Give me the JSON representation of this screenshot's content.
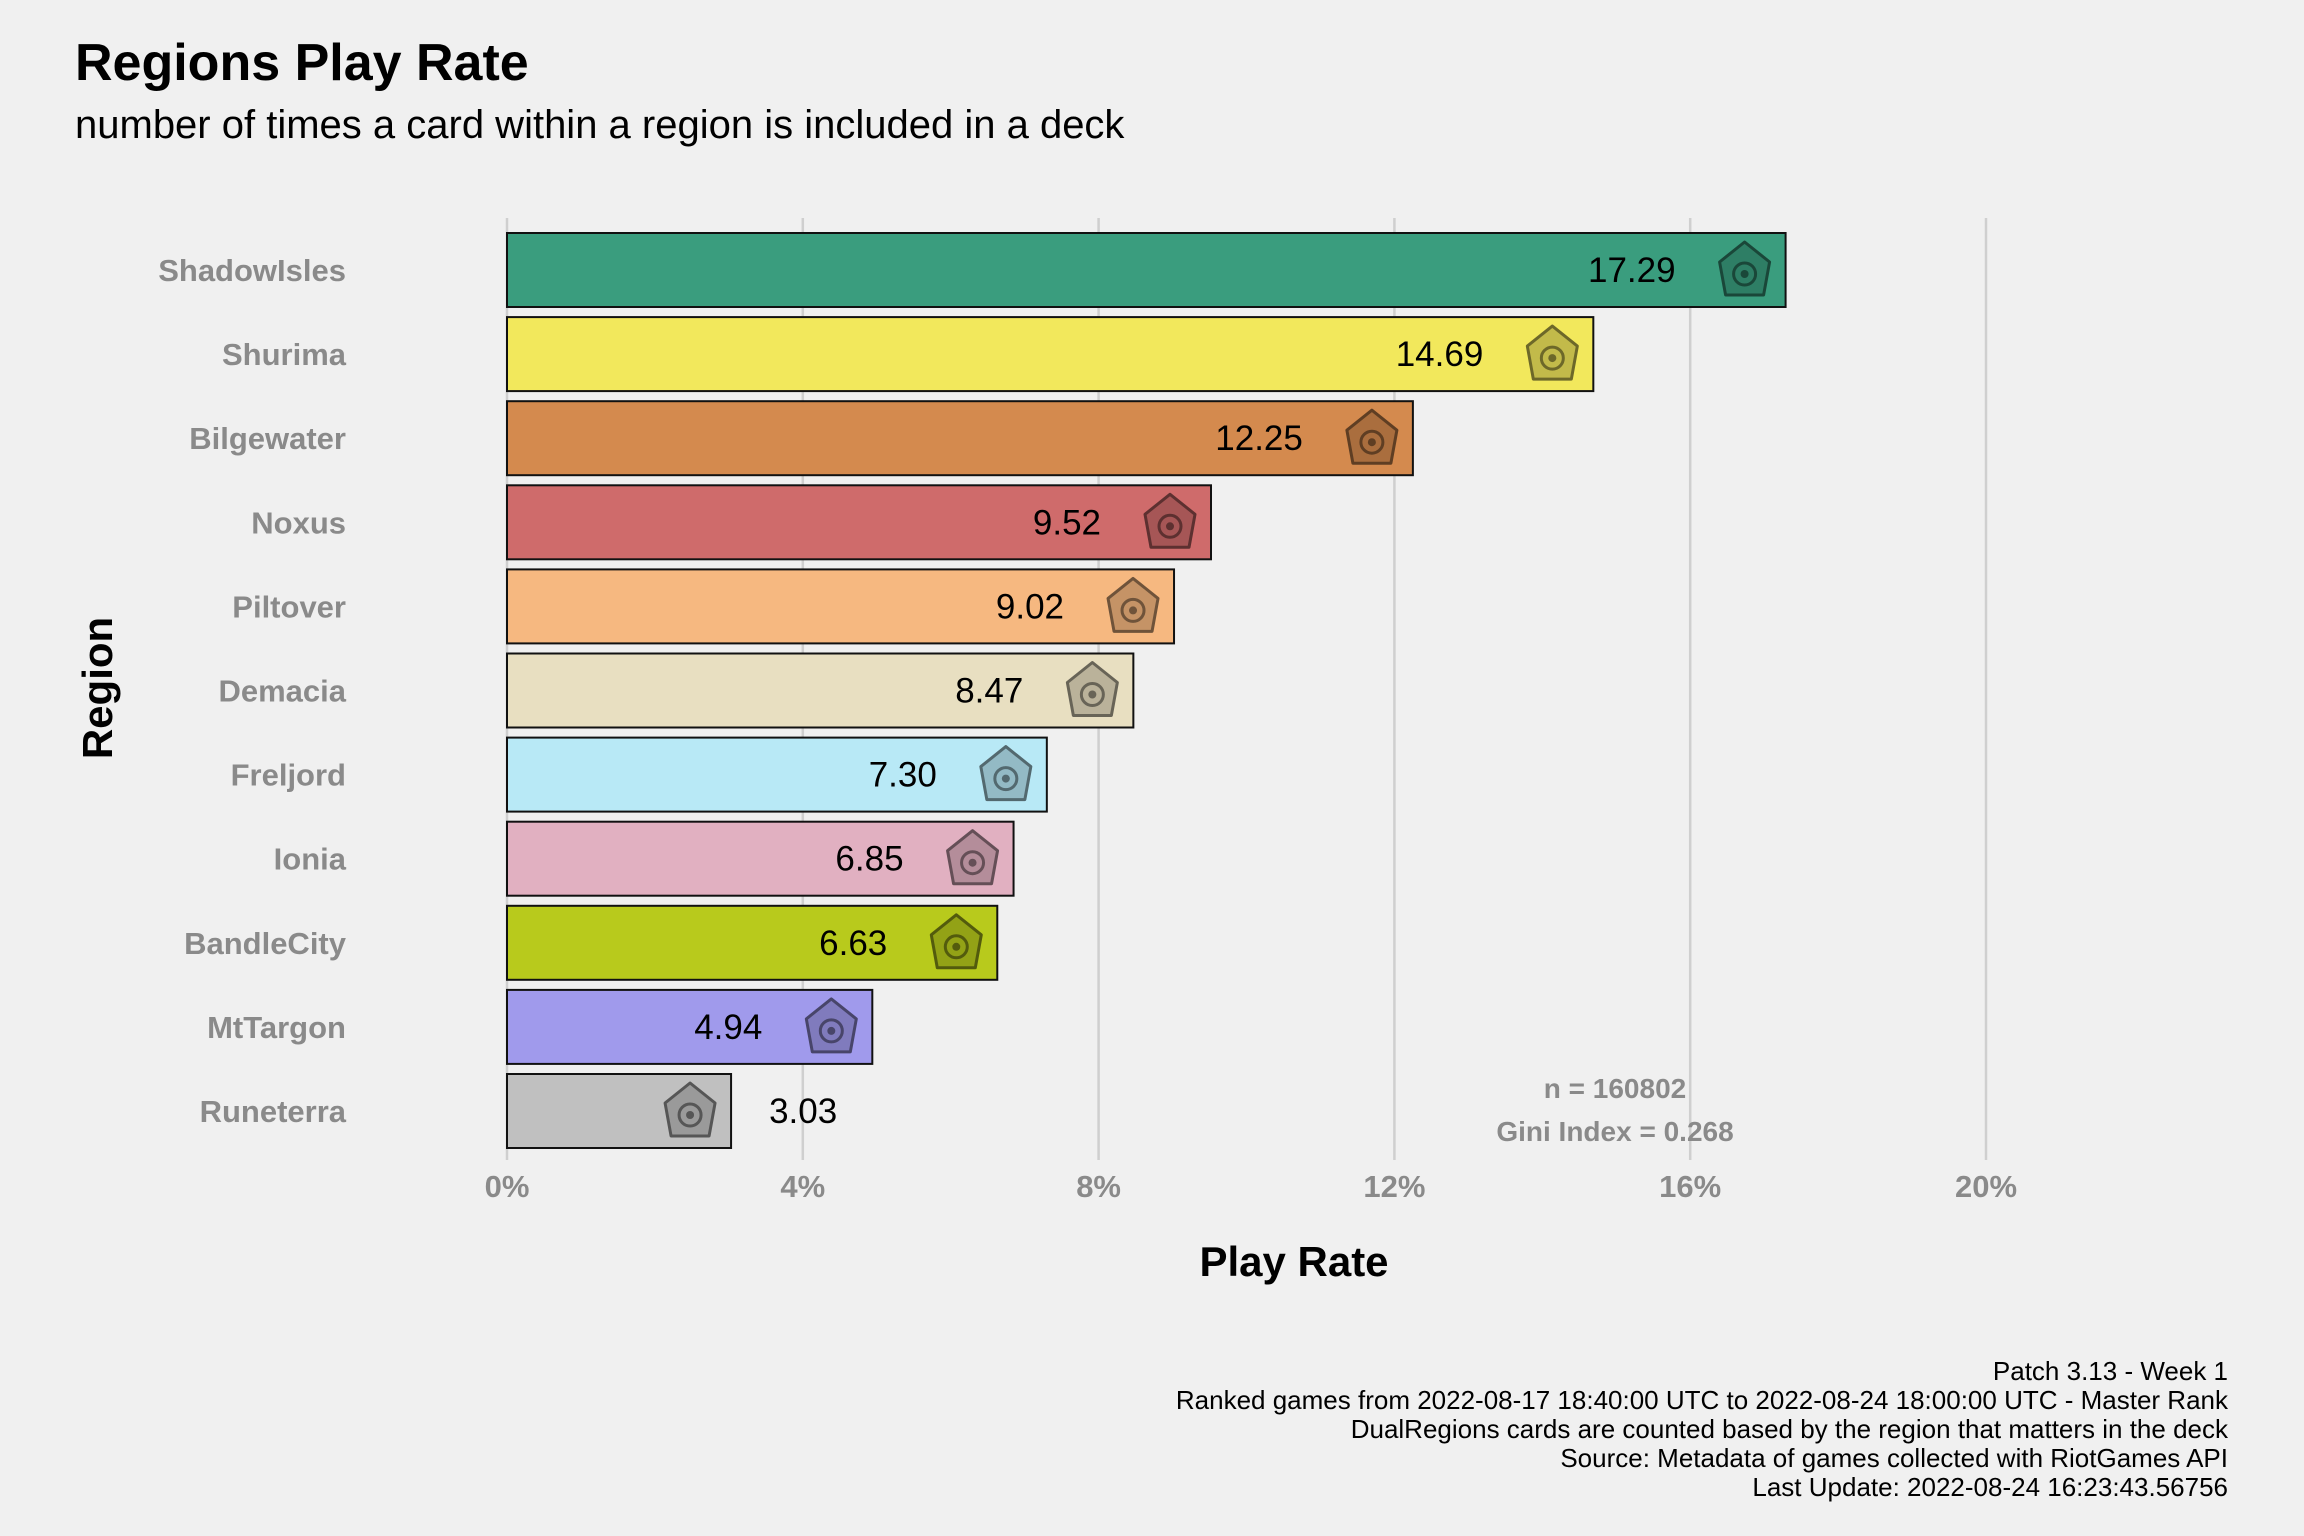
{
  "title": "Regions Play Rate",
  "subtitle": "number of times a card within a region is included in a deck",
  "chart_data": {
    "type": "bar",
    "orientation": "horizontal",
    "xlabel": "Play Rate",
    "ylabel": "Region",
    "xlim": [
      0,
      20
    ],
    "x_ticks": [
      "0%",
      "4%",
      "8%",
      "12%",
      "16%",
      "20%"
    ],
    "categories": [
      "ShadowIsles",
      "Shurima",
      "Bilgewater",
      "Noxus",
      "Piltover",
      "Demacia",
      "Freljord",
      "Ionia",
      "BandleCity",
      "MtTargon",
      "Runeterra"
    ],
    "values": [
      17.29,
      14.69,
      12.25,
      9.52,
      9.02,
      8.47,
      7.3,
      6.85,
      6.63,
      4.94,
      3.03
    ],
    "value_labels": [
      "17.29",
      "14.69",
      "12.25",
      "9.52",
      "9.02",
      "8.47",
      "7.30",
      "6.85",
      "6.63",
      "4.94",
      "3.03"
    ],
    "colors": [
      "#3a9d7e",
      "#f2e85c",
      "#d48a4e",
      "#cf6b6b",
      "#f6b880",
      "#e8dfc1",
      "#b8e9f6",
      "#e1b0c1",
      "#b8ca1c",
      "#a09aec",
      "#c0c0c0"
    ],
    "icons": [
      "shadow-isles-icon",
      "shurima-icon",
      "bilgewater-icon",
      "noxus-icon",
      "piltover-icon",
      "demacia-icon",
      "freljord-icon",
      "ionia-icon",
      "bandle-city-icon",
      "mt-targon-icon",
      "runeterra-icon"
    ],
    "grid": true,
    "annotations": [
      "n = 160802",
      "Gini Index = 0.268"
    ]
  },
  "caption_lines": [
    "Patch 3.13 - Week 1",
    "Ranked games from 2022-08-17 18:40:00 UTC to 2022-08-24 18:00:00 UTC - Master Rank",
    "DualRegions cards are counted based by the region that matters in the deck",
    "Source: Metadata of games collected with RiotGames API",
    "Last Update: 2022-08-24 16:23:43.56756"
  ]
}
